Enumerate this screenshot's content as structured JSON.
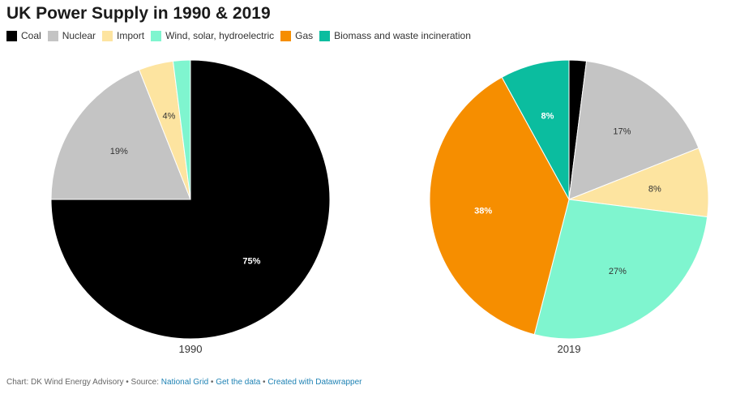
{
  "title": "UK Power Supply in 1990 & 2019",
  "legend": [
    {
      "label": "Coal",
      "color": "#000000"
    },
    {
      "label": "Nuclear",
      "color": "#c4c4c4"
    },
    {
      "label": "Import",
      "color": "#fde4a0"
    },
    {
      "label": "Wind, solar, hydroelectric",
      "color": "#7ff5cf"
    },
    {
      "label": "Gas",
      "color": "#f68e00"
    },
    {
      "label": "Biomass and waste incineration",
      "color": "#0bbd9f"
    }
  ],
  "footer": {
    "prefix": "Chart: DK Wind Energy Advisory • Source: ",
    "source": "National Grid",
    "sep1": " • ",
    "get_data": "Get the data",
    "sep2": " • ",
    "created": "Created with Datawrapper"
  },
  "chart_data": [
    {
      "type": "pie",
      "title": "1990",
      "slices": [
        {
          "label": "Coal",
          "value": 75,
          "display": "75%",
          "color": "#000000",
          "text_color": "#ffffff"
        },
        {
          "label": "Nuclear",
          "value": 19,
          "display": "19%",
          "color": "#c4c4c4",
          "text_color": "#333333"
        },
        {
          "label": "Import",
          "value": 4,
          "display": "4%",
          "color": "#fde4a0",
          "text_color": "#333333"
        },
        {
          "label": "Wind, solar, hydroelectric",
          "value": 2,
          "display": "",
          "color": "#7ff5cf",
          "text_color": "#333333"
        }
      ]
    },
    {
      "type": "pie",
      "title": "2019",
      "slices": [
        {
          "label": "Coal",
          "value": 2,
          "display": "",
          "color": "#000000",
          "text_color": "#ffffff"
        },
        {
          "label": "Nuclear",
          "value": 17,
          "display": "17%",
          "color": "#c4c4c4",
          "text_color": "#333333"
        },
        {
          "label": "Import",
          "value": 8,
          "display": "8%",
          "color": "#fde4a0",
          "text_color": "#333333"
        },
        {
          "label": "Wind, solar, hydroelectric",
          "value": 27,
          "display": "27%",
          "color": "#7ff5cf",
          "text_color": "#333333"
        },
        {
          "label": "Gas",
          "value": 38,
          "display": "38%",
          "color": "#f68e00",
          "text_color": "#ffffff"
        },
        {
          "label": "Biomass and waste incineration",
          "value": 8,
          "display": "8%",
          "color": "#0bbd9f",
          "text_color": "#ffffff"
        }
      ]
    }
  ]
}
